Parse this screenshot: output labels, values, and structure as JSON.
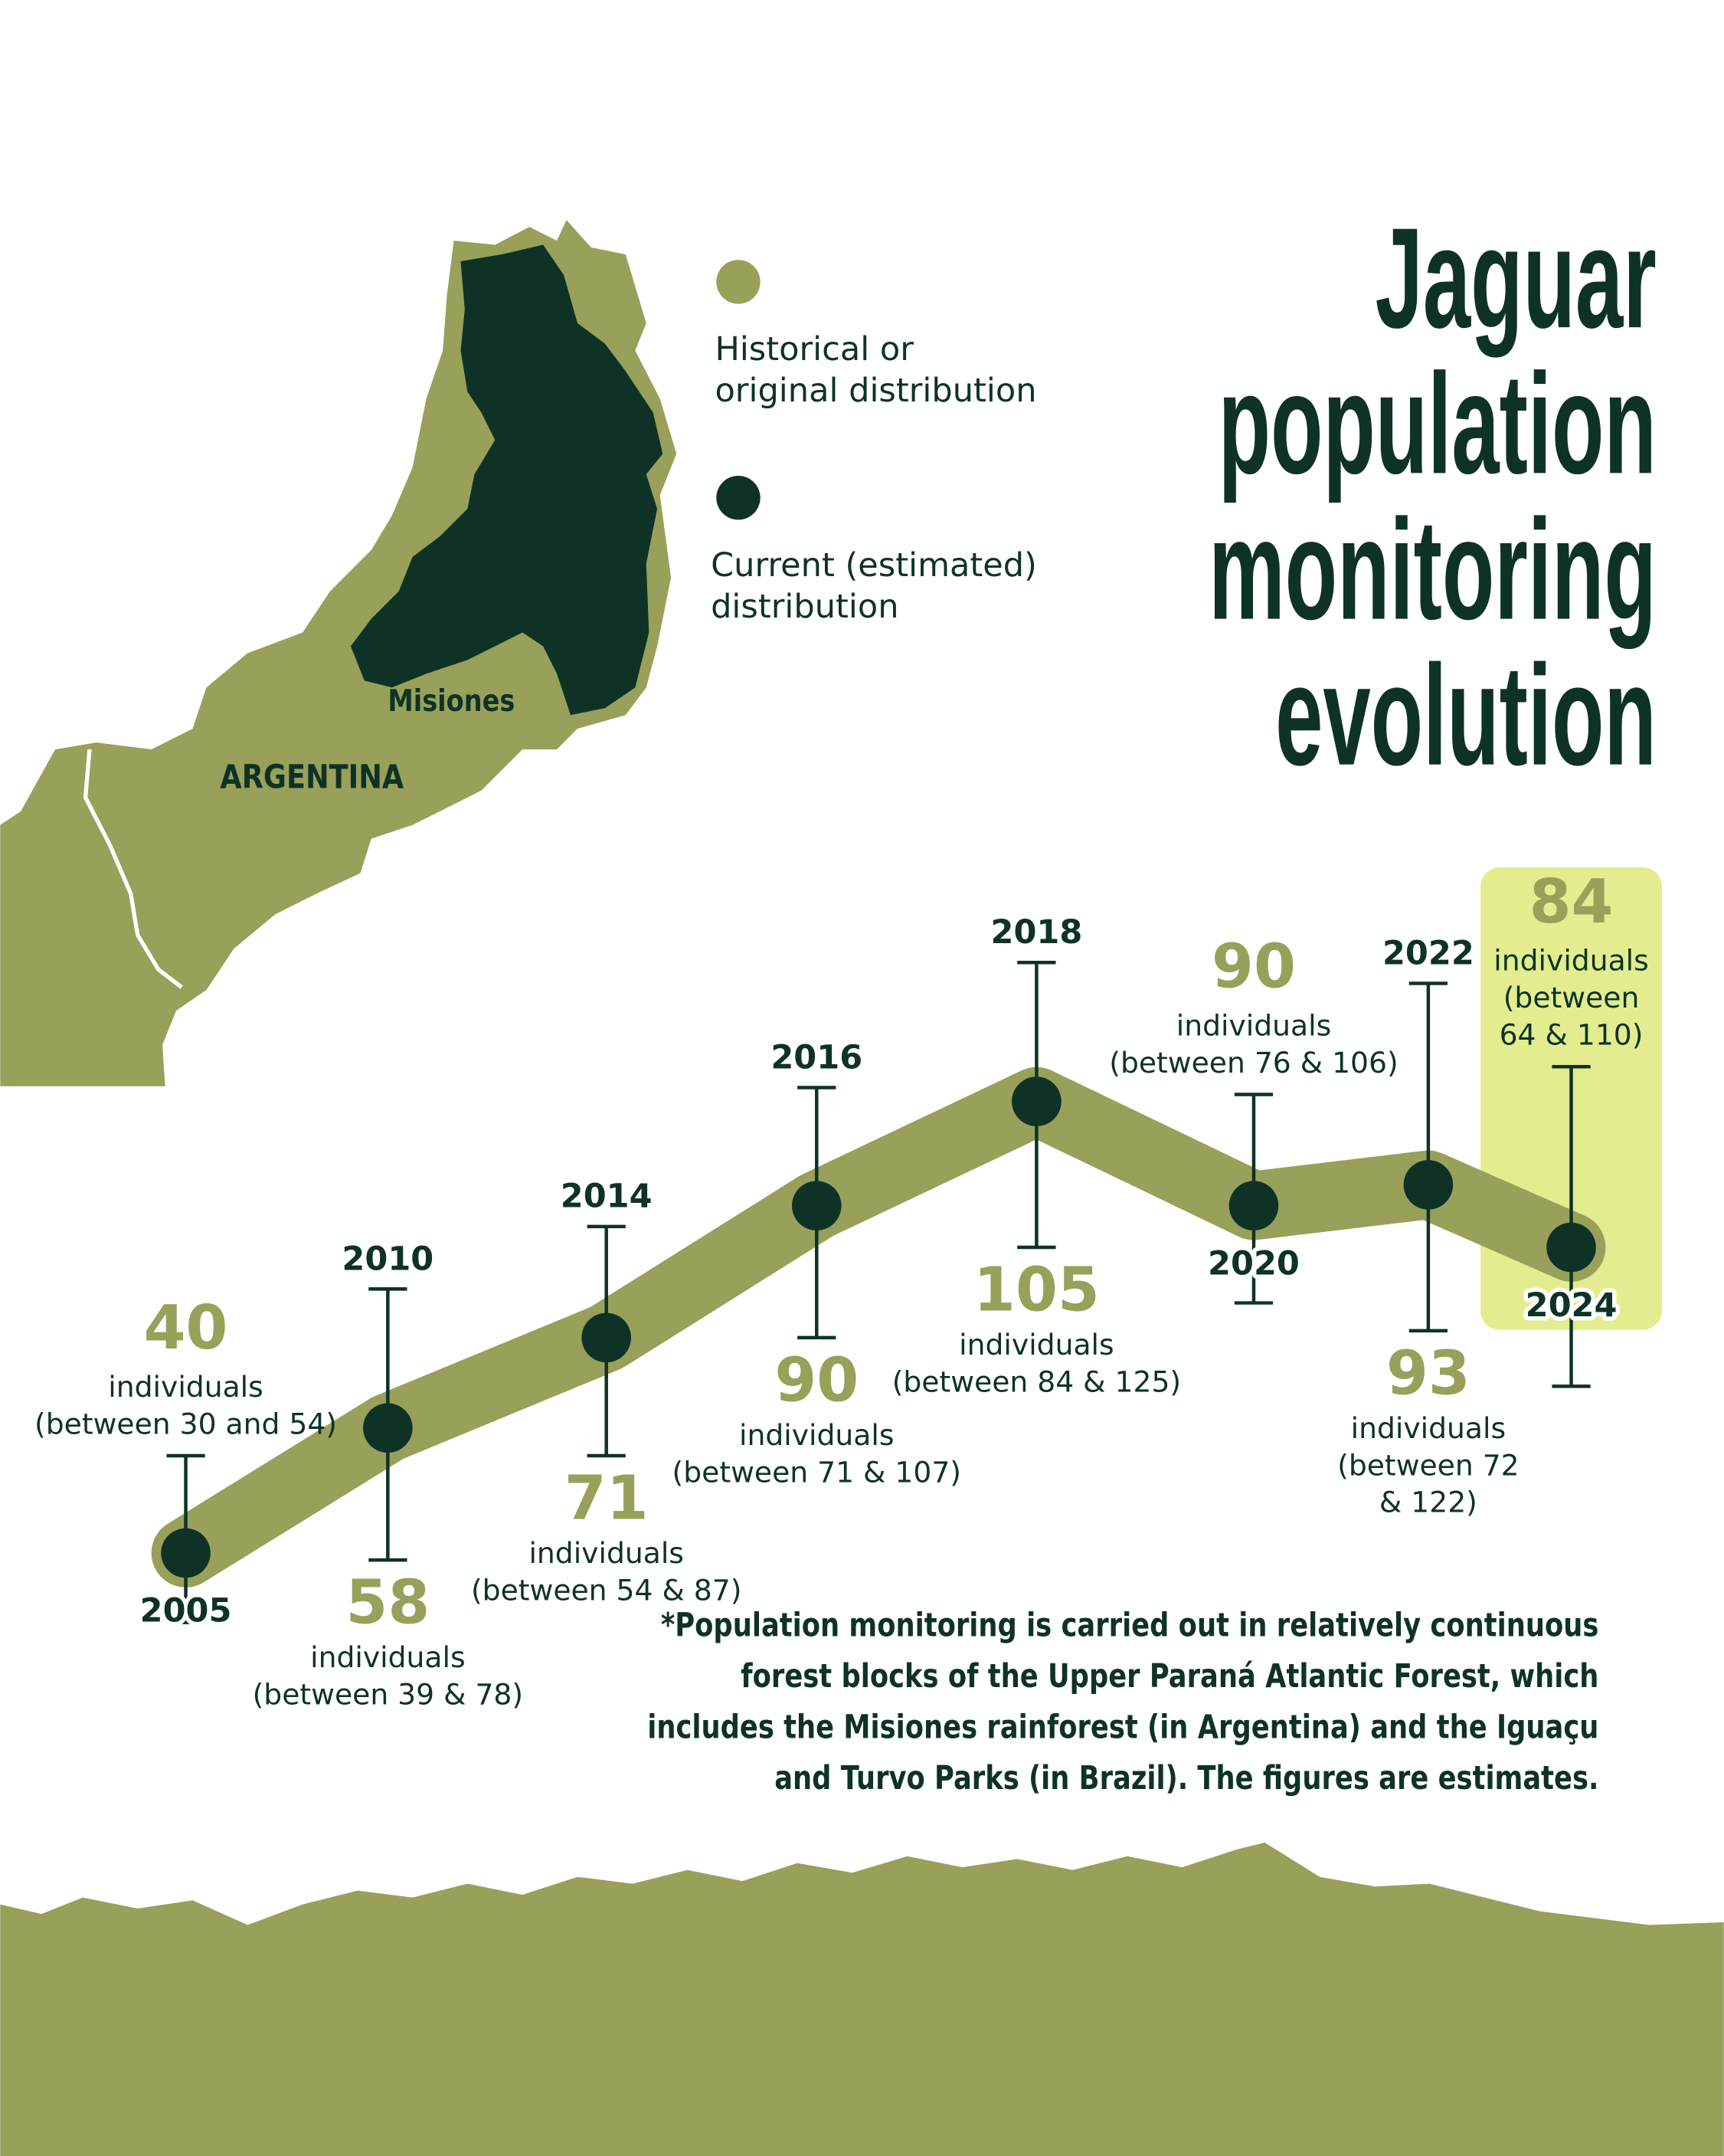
{
  "chart_data": {
    "type": "line",
    "title": [
      "Jaguar",
      "population",
      "monitoring",
      "evolution"
    ],
    "categories": [
      "2005",
      "2010",
      "2014",
      "2016",
      "2018",
      "2020",
      "2022",
      "2024"
    ],
    "values": [
      40,
      58,
      71,
      90,
      105,
      90,
      93,
      84
    ],
    "lower": [
      30,
      39,
      54,
      71,
      84,
      76,
      72,
      64
    ],
    "upper": [
      54,
      78,
      87,
      107,
      125,
      106,
      122,
      110
    ],
    "notes": [
      [
        "individuals",
        "(between 30 and 54)"
      ],
      [
        "individuals",
        "(between 39 & 78)"
      ],
      [
        "individuals",
        "(between 54 & 87)"
      ],
      [
        "individuals",
        "(between 71 & 107)"
      ],
      [
        "individuals",
        "(between 84 & 125)"
      ],
      [
        "individuals",
        "(between 76 & 106)"
      ],
      [
        "individuals",
        "(between 72",
        "& 122)"
      ],
      [
        "individuals",
        "(between",
        "64 & 110)"
      ]
    ],
    "color": "#98a05a",
    "point_color": "#0e3326",
    "highlight_color": "#e3ed8f",
    "map_labels": {
      "region": "Misiones",
      "country": "ARGENTINA"
    },
    "legend": [
      {
        "label": [
          "Historical or",
          "original distribution"
        ],
        "color": "#98a05a"
      },
      {
        "label": [
          "Current (estimated)",
          "distribution"
        ],
        "color": "#0e3326"
      }
    ],
    "footnote": [
      "*Population monitoring is carried out in relatively continuous",
      "forest blocks of the Upper Paraná Atlantic Forest, which",
      "includes the Misiones rainforest (in Argentina) and the Iguaçu",
      "and Turvo Parks (in Brazil). The figures are estimates."
    ]
  }
}
